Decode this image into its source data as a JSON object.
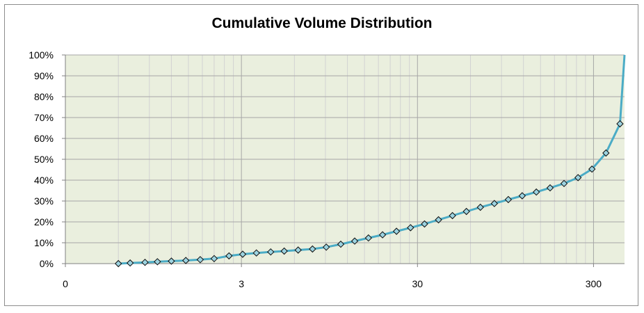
{
  "chart_data": {
    "type": "line",
    "title": "Cumulative Volume Distribution",
    "xlabel": "",
    "ylabel": "",
    "x_scale": "log",
    "x_tick_labels": [
      "0",
      "3",
      "30",
      "300"
    ],
    "y_tick_labels": [
      "0%",
      "10%",
      "20%",
      "30%",
      "40%",
      "50%",
      "60%",
      "70%",
      "80%",
      "90%",
      "100%"
    ],
    "ylim": [
      0,
      100
    ],
    "grid": true,
    "legend": "none",
    "series": [
      {
        "marker": "diamond",
        "x": [
          0.6,
          0.7,
          0.85,
          1.0,
          1.2,
          1.45,
          1.75,
          2.1,
          2.55,
          3.05,
          3.65,
          4.4,
          5.25,
          6.3,
          7.6,
          9.1,
          11.0,
          13.2,
          15.8,
          19.0,
          22.8,
          27.4,
          32.9,
          39.5,
          47.4,
          56.9,
          68.3,
          82.0,
          98.4,
          118,
          142,
          170,
          204,
          245,
          294,
          353,
          424
        ],
        "values": [
          0.0,
          0.3,
          0.6,
          0.9,
          1.2,
          1.5,
          1.9,
          2.4,
          3.7,
          4.5,
          5.1,
          5.6,
          6.0,
          6.5,
          7.0,
          7.9,
          9.3,
          10.8,
          12.3,
          13.8,
          15.5,
          17.2,
          19.0,
          21.0,
          23.0,
          25.0,
          27.0,
          28.8,
          30.7,
          32.5,
          34.3,
          36.3,
          38.4,
          41.2,
          45.3,
          53.0,
          67.0
        ]
      }
    ]
  },
  "colors": {
    "plot_bg": "#eaefde",
    "line": "#4bacc6",
    "marker_fill": "#9dd3e0",
    "marker_edge": "#0d0d0d",
    "major_grid": "#a6a6a6",
    "minor_grid": "#d2d2d2"
  }
}
